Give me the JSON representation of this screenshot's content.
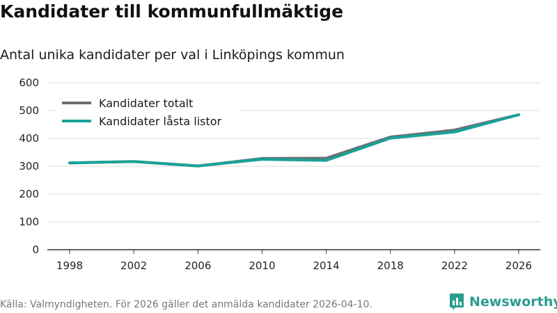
{
  "title": "Kandidater till kommunfullmäktige",
  "subtitle": "Antal unika kandidater per val i Linköpings kommun",
  "source": "Källa: Valmyndigheten. För 2026 gäller det anmälda kandidater 2026-04-10.",
  "brand": {
    "name": "Newsworthy",
    "color": "#2a9d8f"
  },
  "chart_data": {
    "type": "line",
    "title": "Kandidater till kommunfullmäktige",
    "subtitle": "Antal unika kandidater per val i Linköpings kommun",
    "xlabel": "",
    "ylabel": "",
    "x": [
      "1998",
      "2002",
      "2006",
      "2010",
      "2014",
      "2018",
      "2022",
      "2026"
    ],
    "ylim": [
      0,
      600
    ],
    "yticks": [
      0,
      100,
      200,
      300,
      400,
      500,
      600
    ],
    "grid": true,
    "legend_position": "top-left",
    "series": [
      {
        "name": "Kandidater totalt",
        "color": "#6e6e73",
        "values": [
          312,
          317,
          301,
          328,
          329,
          405,
          430,
          485
        ]
      },
      {
        "name": "Kandidater låsta listor",
        "color": "#17a398",
        "values": [
          312,
          317,
          301,
          325,
          321,
          401,
          423,
          485
        ]
      }
    ]
  }
}
